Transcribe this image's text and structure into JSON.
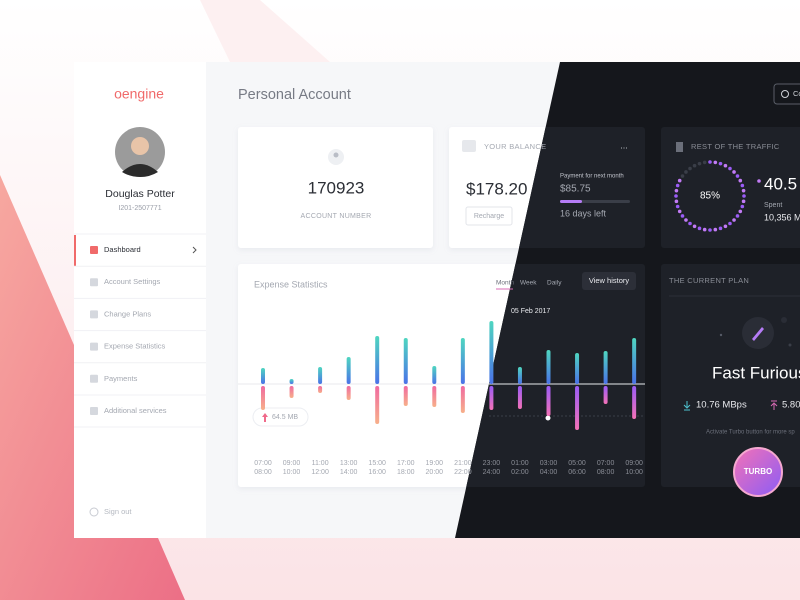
{
  "brand": "oengine",
  "user": {
    "name": "Douglas Potter",
    "id": "I201-2507771"
  },
  "nav": [
    "Dashboard",
    "Account Settings",
    "Change Plans",
    "Expense Statistics",
    "Payments",
    "Additional services"
  ],
  "sign_out": "Sign out",
  "header": {
    "title": "Personal Account",
    "button": "Co"
  },
  "account": {
    "number": "170923",
    "label": "ACCOUNT NUMBER"
  },
  "balance": {
    "title": "YOUR BALANCE",
    "menu": "...",
    "amount": "$178.20",
    "button": "Recharge",
    "next_label": "Payment for next month",
    "next_amount": "$85.75",
    "days_left": "16 days left"
  },
  "traffic": {
    "title": "REST OF THE TRAFFIC",
    "percent": "85%",
    "value": "40.5",
    "spent_label": "Spent",
    "spent_value": "10,356 M"
  },
  "expense": {
    "title": "Expense Statistics",
    "tabs": [
      "Month",
      "Week",
      "Daily"
    ],
    "button": "View history",
    "tooltip_date": "05 Feb 2017",
    "tooltip_value": "64.5 MB",
    "slots": [
      [
        "07:00",
        "08:00"
      ],
      [
        "09:00",
        "10:00"
      ],
      [
        "11:00",
        "12:00"
      ],
      [
        "13:00",
        "14:00"
      ],
      [
        "15:00",
        "16:00"
      ],
      [
        "17:00",
        "18:00"
      ],
      [
        "19:00",
        "20:00"
      ],
      [
        "21:00",
        "22:00"
      ],
      [
        "23:00",
        "24:00"
      ],
      [
        "01:00",
        "02:00"
      ],
      [
        "03:00",
        "04:00"
      ],
      [
        "05:00",
        "06:00"
      ],
      [
        "07:00",
        "08:00"
      ],
      [
        "09:00",
        "10:00"
      ]
    ],
    "upload": [
      16,
      5,
      17,
      27,
      48,
      46,
      18,
      46,
      63,
      17,
      34,
      31,
      33,
      46
    ],
    "download": [
      24,
      12,
      7,
      14,
      38,
      20,
      21,
      27,
      24,
      23,
      30,
      44,
      18,
      33
    ]
  },
  "plan": {
    "title": "THE CURRENT PLAN",
    "name": "Fast Furious",
    "download": "10.76 MBps",
    "upload": "5.80",
    "note": "Activate Turbo button for more sp",
    "turbo": "TURBO"
  }
}
